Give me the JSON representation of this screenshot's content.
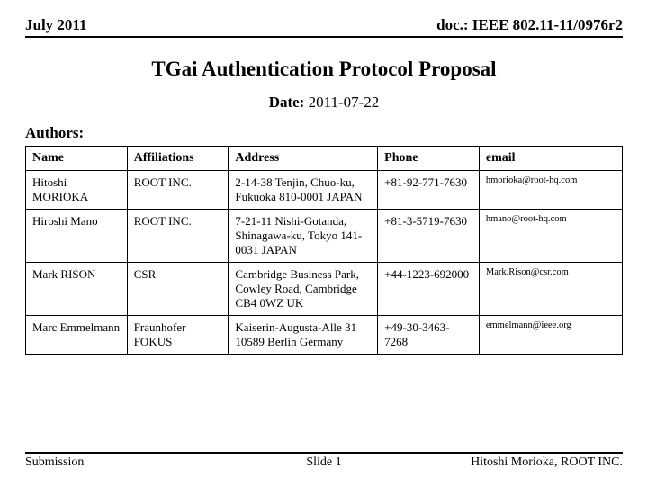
{
  "header": {
    "left": "July 2011",
    "right": "doc.: IEEE 802.11-11/0976r2"
  },
  "title": "TGai Authentication Protocol Proposal",
  "date": {
    "label": "Date:",
    "value": "2011-07-22"
  },
  "authors_label": "Authors:",
  "table": {
    "columns": [
      "Name",
      "Affiliations",
      "Address",
      "Phone",
      "email"
    ],
    "rows": [
      {
        "name": "Hitoshi MORIOKA",
        "affil": "ROOT INC.",
        "addr": "2-14-38 Tenjin, Chuo-ku, Fukuoka 810-0001 JAPAN",
        "phone": "+81-92-771-7630",
        "email": "hmorioka@root-hq.com"
      },
      {
        "name": "Hiroshi Mano",
        "affil": "ROOT INC.",
        "addr": "7-21-11 Nishi-Gotanda, Shinagawa-ku, Tokyo 141-0031 JAPAN",
        "phone": "+81-3-5719-7630",
        "email": "hmano@root-hq.com"
      },
      {
        "name": "Mark RISON",
        "affil": "CSR",
        "addr": "Cambridge Business Park, Cowley Road, Cambridge CB4 0WZ UK",
        "phone": "+44-1223-692000",
        "email": "Mark.Rison@csr.com"
      },
      {
        "name": "Marc Emmelmann",
        "affil": "Fraunhofer FOKUS",
        "addr": "Kaiserin-Augusta-Alle 31 10589 Berlin Germany",
        "phone": "+49-30-3463-7268",
        "email": "emmelmann@ieee.org"
      }
    ]
  },
  "footer": {
    "left": "Submission",
    "center": "Slide 1",
    "right": "Hitoshi Morioka, ROOT INC."
  }
}
